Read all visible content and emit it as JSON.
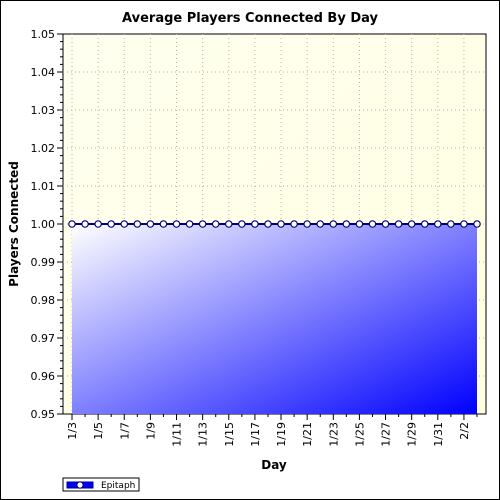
{
  "chart_data": {
    "type": "area",
    "title": "Average Players Connected By Day",
    "xlabel": "Day",
    "ylabel": "Players Connected",
    "ylim": [
      0.95,
      1.05
    ],
    "yticks": [
      "0.95",
      "0.96",
      "0.97",
      "0.98",
      "0.99",
      "1.00",
      "1.01",
      "1.02",
      "1.03",
      "1.04",
      "1.05"
    ],
    "x": [
      "1/3",
      "1/4",
      "1/5",
      "1/6",
      "1/7",
      "1/8",
      "1/9",
      "1/10",
      "1/11",
      "1/12",
      "1/13",
      "1/14",
      "1/15",
      "1/16",
      "1/17",
      "1/18",
      "1/19",
      "1/20",
      "1/21",
      "1/22",
      "1/23",
      "1/24",
      "1/25",
      "1/26",
      "1/27",
      "1/28",
      "1/29",
      "1/30",
      "1/31",
      "2/1",
      "2/2",
      "2/3"
    ],
    "x_tick_labels": [
      "1/3",
      "1/5",
      "1/7",
      "1/9",
      "1/11",
      "1/13",
      "1/15",
      "1/17",
      "1/19",
      "1/21",
      "1/23",
      "1/25",
      "1/27",
      "1/29",
      "1/31",
      "2/2"
    ],
    "series": [
      {
        "name": "Epitaph",
        "values": [
          1,
          1,
          1,
          1,
          1,
          1,
          1,
          1,
          1,
          1,
          1,
          1,
          1,
          1,
          1,
          1,
          1,
          1,
          1,
          1,
          1,
          1,
          1,
          1,
          1,
          1,
          1,
          1,
          1,
          1,
          1,
          1
        ],
        "color": "#0000ff"
      }
    ],
    "grid": true,
    "legend": "bottom-left",
    "colors": {
      "plot_background": "#ffffe0",
      "fill_start": "#ffffff",
      "fill_end": "#0000ff",
      "grid": "#b5b5a0"
    }
  }
}
